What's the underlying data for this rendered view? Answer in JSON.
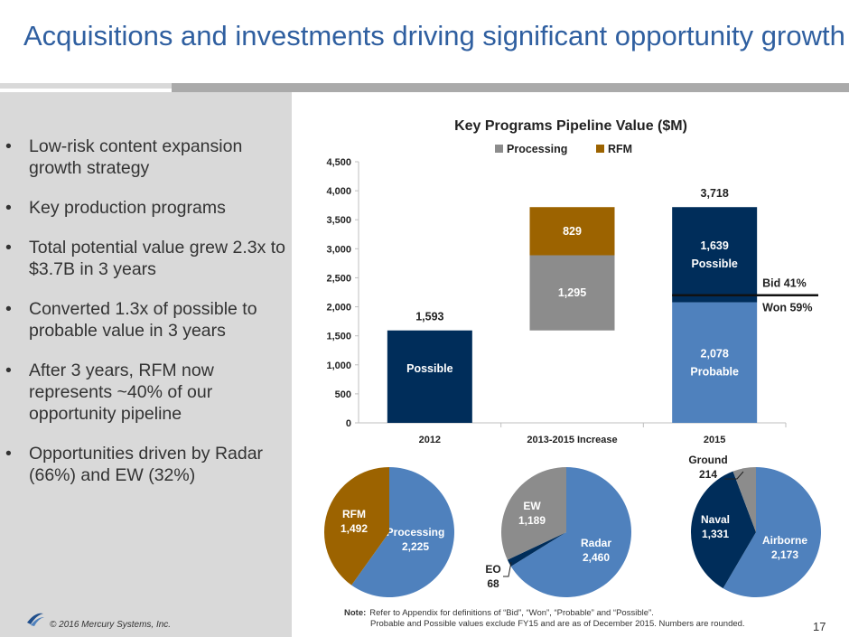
{
  "title": "Acquisitions and investments driving significant opportunity growth",
  "bullets": [
    "Low-risk content expansion growth strategy",
    "Key production programs",
    "Total potential value grew 2.3x to $3.7B in 3 years",
    "Converted 1.3x of possible to probable value in 3 years",
    "After 3 years, RFM now represents ~40% of our opportunity pipeline",
    "Opportunities driven by Radar (66%) and EW (32%)"
  ],
  "footer": {
    "copyright": "© 2016 Mercury Systems, Inc.",
    "page_number": "17"
  },
  "note": {
    "label": "Note:",
    "line1": "Refer to Appendix for definitions of “Bid”, “Won”, “Probable” and “Possible”.",
    "line2": "Probable and Possible values exclude FY15 and are as of December 2015. Numbers are rounded."
  },
  "colors": {
    "navy": "#002d5a",
    "blue": "#4f81bd",
    "gray": "#8c8c8c",
    "rfm": "#9c6300",
    "title": "#2f5fa0"
  },
  "chart_data": [
    {
      "type": "bar",
      "subtype": "waterfall-stacked",
      "title": "Key Programs Pipeline Value  ($M)",
      "legend": [
        "Processing",
        "RFM"
      ],
      "categories": [
        "2012",
        "2013-2015 Increase",
        "2015"
      ],
      "ylim": [
        0,
        4500
      ],
      "yticks": [
        "0",
        "500",
        "1,000",
        "1,500",
        "2,000",
        "2,500",
        "3,000",
        "3,500",
        "4,000",
        "4,500"
      ],
      "bars": [
        {
          "category": "2012",
          "segments": [
            {
              "start": 0,
              "end": 1593,
              "color": "#002d5a",
              "label": "Possible"
            }
          ],
          "total_label": "1,593"
        },
        {
          "category": "2013-2015 Increase",
          "segments": [
            {
              "start": 1593,
              "end": 2888,
              "color": "#8c8c8c",
              "label": "1,295"
            },
            {
              "start": 2888,
              "end": 3718,
              "color": "#9c6300",
              "label": "829"
            }
          ]
        },
        {
          "category": "2015",
          "segments": [
            {
              "start": 0,
              "end": 2078,
              "color": "#4f81bd",
              "label": "2,078",
              "sublabel": "Probable"
            },
            {
              "start": 2078,
              "end": 3718,
              "color": "#002d5a",
              "label": "1,639",
              "sublabel": "Possible"
            }
          ],
          "total_label": "3,718"
        }
      ],
      "bid_won": {
        "value": 2200,
        "bid_label": "Bid  41%",
        "won_label": "Won 59%"
      }
    },
    {
      "type": "pie",
      "slices": [
        {
          "name": "Processing",
          "value": 2225,
          "label": "Processing",
          "value_label": "2,225",
          "color": "#4f81bd"
        },
        {
          "name": "RFM",
          "value": 1492,
          "label": "RFM",
          "value_label": "1,492",
          "color": "#9c6300"
        }
      ]
    },
    {
      "type": "pie",
      "slices": [
        {
          "name": "Radar",
          "value": 2460,
          "label": "Radar",
          "value_label": "2,460",
          "color": "#4f81bd"
        },
        {
          "name": "EO",
          "value": 68,
          "label": "EO",
          "value_label": "68",
          "color": "#002d5a"
        },
        {
          "name": "EW",
          "value": 1189,
          "label": "EW",
          "value_label": "1,189",
          "color": "#8c8c8c"
        }
      ]
    },
    {
      "type": "pie",
      "slices": [
        {
          "name": "Airborne",
          "value": 2173,
          "label": "Airborne",
          "value_label": "2,173",
          "color": "#4f81bd"
        },
        {
          "name": "Naval",
          "value": 1331,
          "label": "Naval",
          "value_label": "1,331",
          "color": "#002d5a"
        },
        {
          "name": "Ground",
          "value": 214,
          "label": "Ground",
          "value_label": "214",
          "color": "#8c8c8c"
        }
      ]
    }
  ]
}
